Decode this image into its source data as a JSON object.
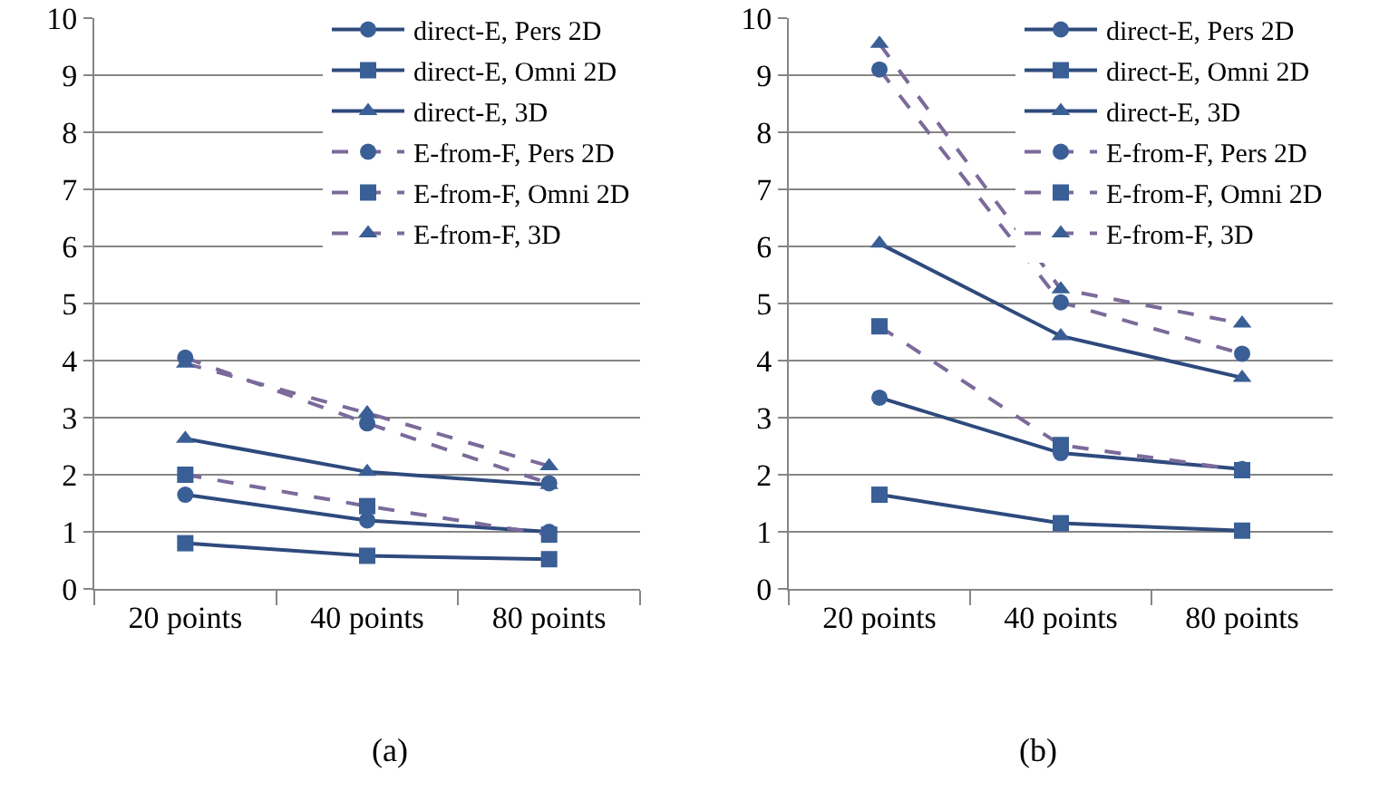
{
  "chart_data": [
    {
      "type": "line",
      "categories": [
        "20 points",
        "40 points",
        "80 points"
      ],
      "ylim": [
        0,
        10
      ],
      "yticks": [
        0,
        1,
        2,
        3,
        4,
        5,
        6,
        7,
        8,
        9,
        10
      ],
      "grid": "y",
      "legend": "top right",
      "annotations": [
        "(a)"
      ],
      "series": [
        {
          "name": "direct-E, Pers 2D",
          "color": "#2e4a7d",
          "marker": "circle",
          "line_style": "solid",
          "values": [
            1.65,
            1.2,
            1.0
          ]
        },
        {
          "name": "direct-E, Omni 2D",
          "color": "#2e4a7d",
          "marker": "square",
          "line_style": "solid",
          "values": [
            0.8,
            0.58,
            0.52
          ]
        },
        {
          "name": "direct-E, 3D",
          "color": "#2e4a7d",
          "marker": "triangle",
          "line_style": "solid",
          "values": [
            2.63,
            2.05,
            1.82
          ]
        },
        {
          "name": "E-from-F, Pers 2D",
          "color": "#7b6a9a",
          "marker": "circle",
          "line_style": "dashed",
          "values": [
            4.05,
            2.9,
            1.85
          ]
        },
        {
          "name": "E-from-F, Omni 2D",
          "color": "#7b6a9a",
          "marker": "square",
          "line_style": "dashed",
          "values": [
            2.0,
            1.45,
            0.95
          ]
        },
        {
          "name": "E-from-F, 3D",
          "color": "#7b6a9a",
          "marker": "triangle",
          "line_style": "dashed",
          "values": [
            3.95,
            3.08,
            2.15
          ]
        }
      ]
    },
    {
      "type": "line",
      "categories": [
        "20 points",
        "40 points",
        "80 points"
      ],
      "ylim": [
        0,
        10
      ],
      "yticks": [
        0,
        1,
        2,
        3,
        4,
        5,
        6,
        7,
        8,
        9,
        10
      ],
      "grid": "y",
      "legend": "top right",
      "annotations": [
        "(b)"
      ],
      "series": [
        {
          "name": "direct-E, Pers 2D",
          "color": "#2e4a7d",
          "marker": "circle",
          "line_style": "solid",
          "values": [
            3.35,
            2.38,
            2.1
          ]
        },
        {
          "name": "direct-E, Omni 2D",
          "color": "#2e4a7d",
          "marker": "square",
          "line_style": "solid",
          "values": [
            1.65,
            1.15,
            1.02
          ]
        },
        {
          "name": "direct-E, 3D",
          "color": "#2e4a7d",
          "marker": "triangle",
          "line_style": "solid",
          "values": [
            6.05,
            4.43,
            3.7
          ]
        },
        {
          "name": "E-from-F, Pers 2D",
          "color": "#7b6a9a",
          "marker": "circle",
          "line_style": "dashed",
          "values": [
            9.1,
            5.02,
            4.12
          ]
        },
        {
          "name": "E-from-F, Omni 2D",
          "color": "#7b6a9a",
          "marker": "square",
          "line_style": "dashed",
          "values": [
            4.6,
            2.52,
            2.08
          ]
        },
        {
          "name": "E-from-F, 3D",
          "color": "#7b6a9a",
          "marker": "triangle",
          "line_style": "dashed",
          "values": [
            9.55,
            5.25,
            4.65
          ]
        }
      ]
    }
  ]
}
